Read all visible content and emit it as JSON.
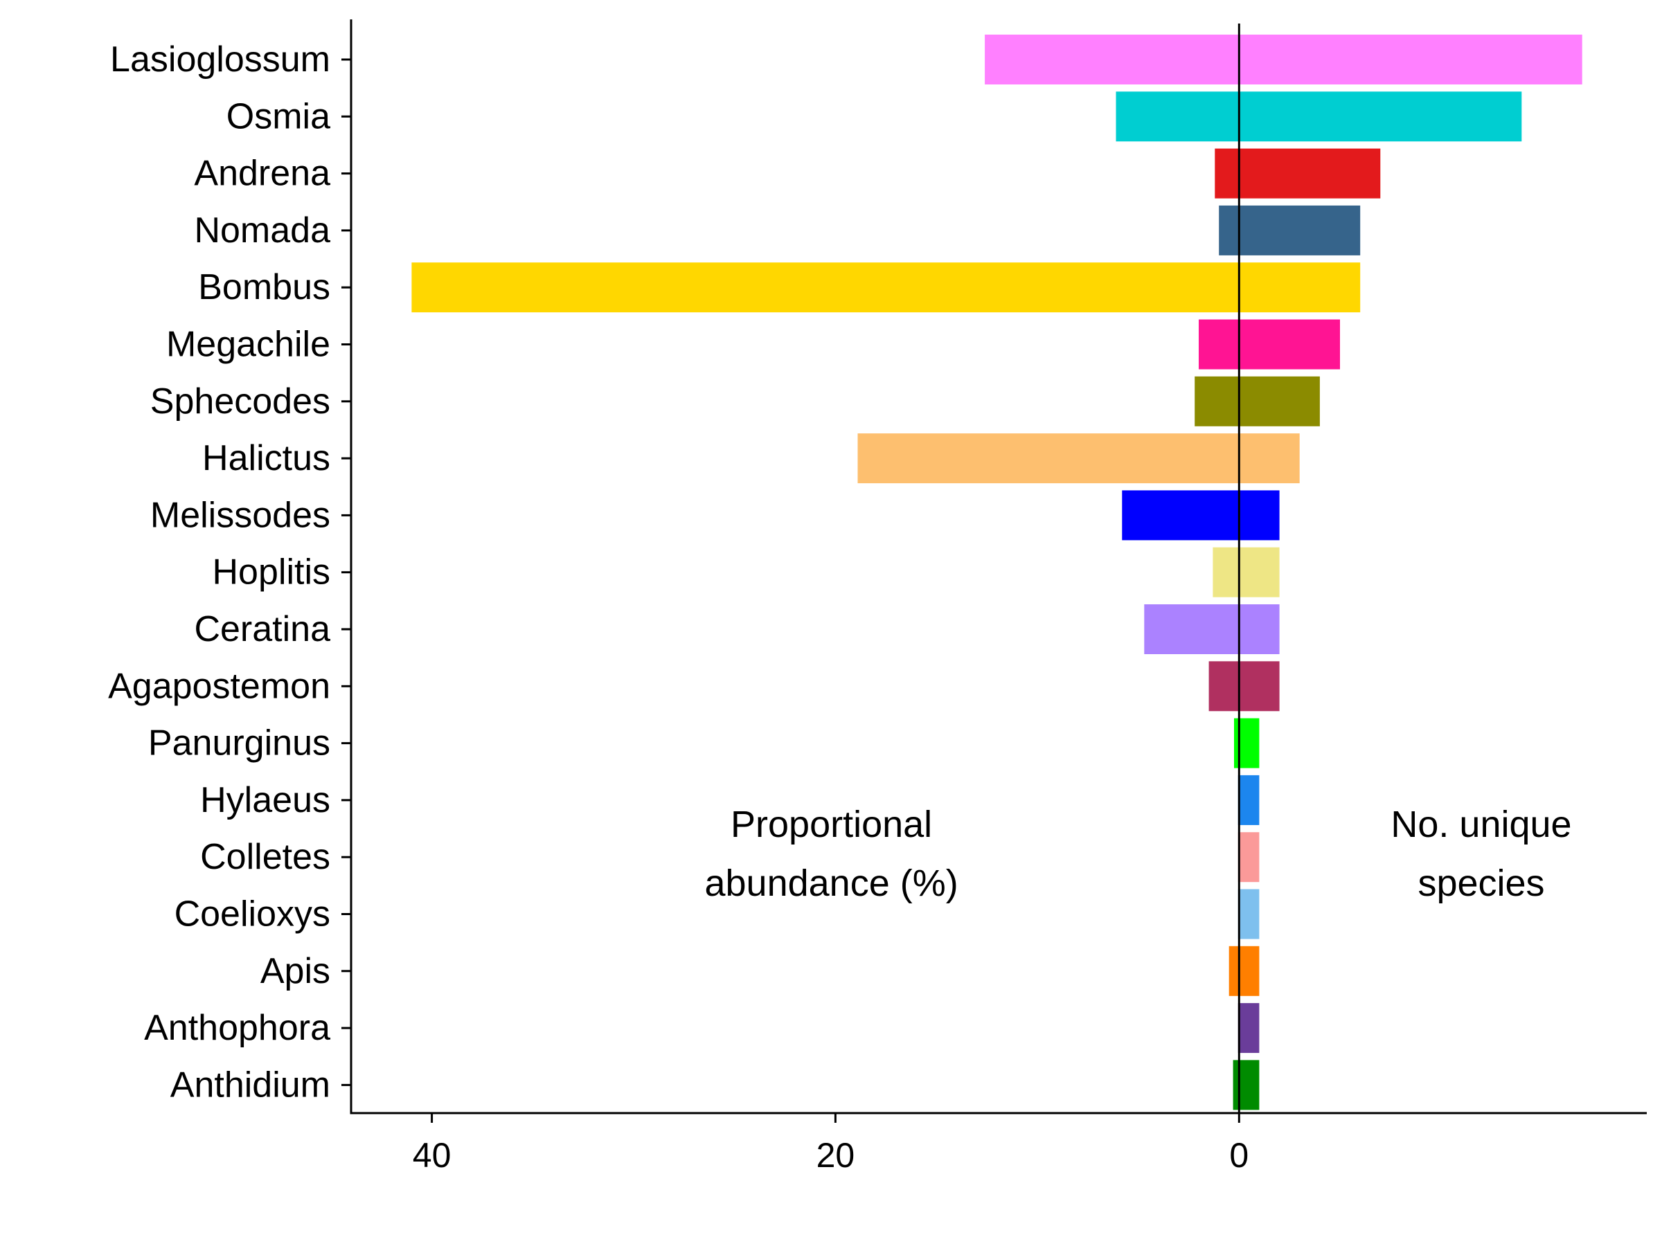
{
  "chart_data": {
    "type": "bar",
    "orientation": "horizontal-diverging",
    "categories": [
      "Lasioglossum",
      "Osmia",
      "Andrena",
      "Nomada",
      "Bombus",
      "Megachile",
      "Sphecodes",
      "Halictus",
      "Melissodes",
      "Hoplitis",
      "Ceratina",
      "Agapostemon",
      "Panurginus",
      "Hylaeus",
      "Colletes",
      "Coelioxys",
      "Apis",
      "Anthophora",
      "Anthidium"
    ],
    "colors": [
      "#ff80ff",
      "#00ced1",
      "#e31a1c",
      "#36648b",
      "#ffd700",
      "#ff1493",
      "#8b8b00",
      "#fdbf6f",
      "#0000ff",
      "#eee685",
      "#ab82ff",
      "#b03060",
      "#00ff00",
      "#1c86ee",
      "#fb9a99",
      "#7ec0ee",
      "#ff7f00",
      "#6a3d9a",
      "#008b00"
    ],
    "series": [
      {
        "name": "Proportional abundance (%)",
        "side": "left",
        "values": [
          12.6,
          6.1,
          1.2,
          1.0,
          41.0,
          2.0,
          2.2,
          18.9,
          5.8,
          1.3,
          4.7,
          1.5,
          0.25,
          0.05,
          0.05,
          0.05,
          0.5,
          0.05,
          0.3
        ]
      },
      {
        "name": "No. unique species",
        "side": "right",
        "values": [
          17,
          14,
          7,
          6,
          6,
          5,
          4,
          3,
          2,
          2,
          2,
          2,
          1,
          1,
          1,
          1,
          1,
          1,
          1
        ]
      }
    ],
    "x_ticks": [
      {
        "value": 40,
        "label": "40"
      },
      {
        "value": 20,
        "label": "20"
      },
      {
        "value": 0,
        "label": "0"
      }
    ],
    "xlim": [
      44,
      -20.2
    ],
    "annotations": [
      {
        "lines": [
          "Proportional",
          "abundance (%)"
        ],
        "x": 20.2
      },
      {
        "lines": [
          "No. unique",
          "species"
        ],
        "x": -12
      }
    ],
    "grid": false,
    "legend": "none"
  }
}
